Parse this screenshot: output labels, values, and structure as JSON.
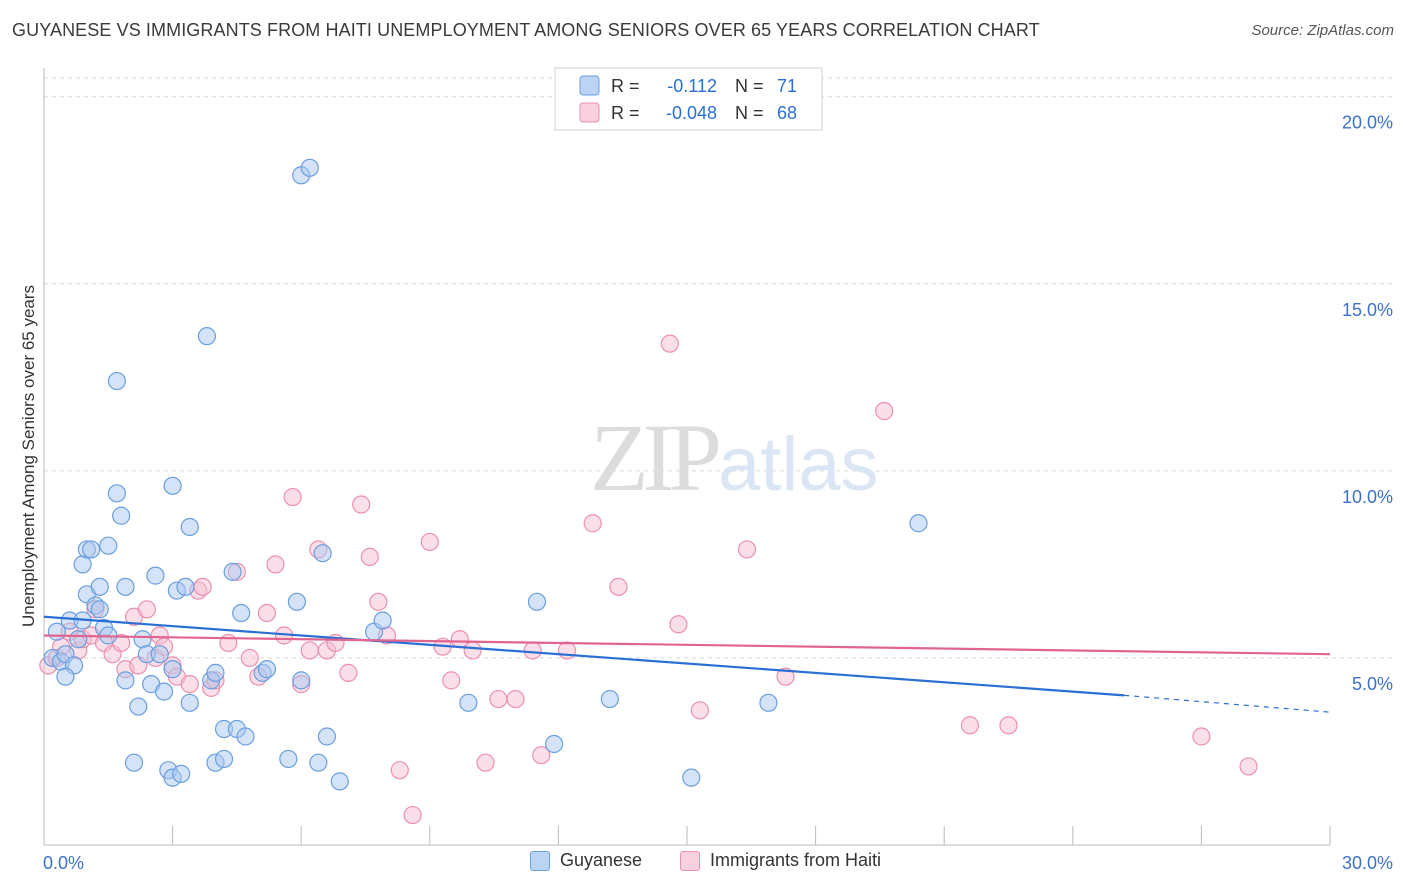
{
  "title": "GUYANESE VS IMMIGRANTS FROM HAITI UNEMPLOYMENT AMONG SENIORS OVER 65 YEARS CORRELATION CHART",
  "source": "Source: ZipAtlas.com",
  "watermark": {
    "zip": "ZIP",
    "atlas": "atlas"
  },
  "colors": {
    "blue_fill": "#a9c8f0",
    "blue_stroke": "#6a9fe0",
    "blue_line": "#2a6fd4",
    "pink_fill": "#f6bfd1",
    "pink_stroke": "#ec90ae",
    "pink_line": "#e0648e",
    "axis_text": "#3b72c9",
    "grid": "#d8d8d8"
  },
  "legend": {
    "rows": [
      {
        "r_label": "R =",
        "r_value": "-0.112",
        "n_label": "N =",
        "n_value": "71"
      },
      {
        "r_label": "R =",
        "r_value": "-0.048",
        "n_label": "N =",
        "n_value": "68"
      }
    ]
  },
  "bottom_legend": [
    "Guyanese",
    "Immigrants from Haiti"
  ],
  "chart_data": {
    "type": "scatter",
    "title": "GUYANESE VS IMMIGRANTS FROM HAITI UNEMPLOYMENT AMONG SENIORS OVER 65 YEARS CORRELATION CHART",
    "xlabel": "",
    "ylabel": "Unemployment Among Seniors over 65 years",
    "xlim": [
      0,
      30
    ],
    "ylim": [
      0,
      20.5
    ],
    "x_tick_labels": [
      "0.0%",
      "30.0%"
    ],
    "y_ticks": [
      5,
      10,
      15,
      20
    ],
    "y_tick_labels": [
      "5.0%",
      "10.0%",
      "15.0%",
      "20.0%"
    ],
    "grid": true,
    "series": [
      {
        "name": "Guyanese",
        "r": -0.112,
        "n": 71,
        "trend": {
          "x0": 0,
          "y0": 6.1,
          "x1": 25.2,
          "y1": 4.0,
          "dash_to_x": 30,
          "dash_to_y": 3.55
        },
        "points": [
          [
            0.2,
            5.0
          ],
          [
            0.3,
            5.7
          ],
          [
            0.4,
            4.9
          ],
          [
            0.5,
            5.1
          ],
          [
            0.6,
            6.0
          ],
          [
            0.7,
            4.8
          ],
          [
            0.8,
            5.5
          ],
          [
            0.9,
            6.0
          ],
          [
            0.9,
            7.5
          ],
          [
            1.0,
            6.7
          ],
          [
            1.0,
            7.9
          ],
          [
            1.1,
            7.9
          ],
          [
            1.2,
            6.4
          ],
          [
            1.3,
            6.3
          ],
          [
            1.3,
            6.9
          ],
          [
            1.4,
            5.8
          ],
          [
            1.5,
            5.6
          ],
          [
            1.5,
            8.0
          ],
          [
            1.7,
            9.4
          ],
          [
            1.8,
            8.8
          ],
          [
            1.7,
            12.4
          ],
          [
            1.9,
            6.9
          ],
          [
            1.9,
            4.4
          ],
          [
            2.1,
            2.2
          ],
          [
            2.2,
            3.7
          ],
          [
            2.3,
            5.5
          ],
          [
            2.4,
            5.1
          ],
          [
            2.5,
            4.3
          ],
          [
            2.6,
            7.2
          ],
          [
            2.7,
            5.1
          ],
          [
            2.8,
            4.1
          ],
          [
            2.9,
            2.0
          ],
          [
            3.0,
            4.7
          ],
          [
            3.0,
            1.8
          ],
          [
            3.0,
            9.6
          ],
          [
            3.1,
            6.8
          ],
          [
            3.2,
            1.9
          ],
          [
            3.3,
            6.9
          ],
          [
            3.4,
            3.8
          ],
          [
            3.4,
            8.5
          ],
          [
            3.8,
            13.6
          ],
          [
            3.9,
            4.4
          ],
          [
            4.0,
            4.6
          ],
          [
            4.0,
            2.2
          ],
          [
            4.2,
            3.1
          ],
          [
            4.2,
            2.3
          ],
          [
            4.4,
            7.3
          ],
          [
            4.5,
            3.1
          ],
          [
            4.6,
            6.2
          ],
          [
            4.7,
            2.9
          ],
          [
            5.1,
            4.6
          ],
          [
            5.2,
            4.7
          ],
          [
            5.7,
            2.3
          ],
          [
            5.9,
            6.5
          ],
          [
            6.0,
            17.9
          ],
          [
            6.0,
            4.4
          ],
          [
            6.2,
            18.1
          ],
          [
            6.4,
            2.2
          ],
          [
            6.5,
            7.8
          ],
          [
            6.6,
            2.9
          ],
          [
            6.9,
            1.7
          ],
          [
            7.7,
            5.7
          ],
          [
            7.9,
            6.0
          ],
          [
            9.9,
            3.8
          ],
          [
            11.5,
            6.5
          ],
          [
            11.9,
            2.7
          ],
          [
            13.2,
            3.9
          ],
          [
            15.1,
            1.8
          ],
          [
            16.9,
            3.8
          ],
          [
            20.4,
            8.6
          ],
          [
            0.5,
            4.5
          ]
        ]
      },
      {
        "name": "Immigrants from Haiti",
        "r": -0.048,
        "n": 68,
        "trend": {
          "x0": 0,
          "y0": 5.6,
          "x1": 30,
          "y1": 5.1
        },
        "points": [
          [
            0.1,
            4.8
          ],
          [
            0.3,
            5.0
          ],
          [
            0.4,
            5.3
          ],
          [
            0.6,
            5.7
          ],
          [
            0.8,
            5.2
          ],
          [
            0.9,
            5.5
          ],
          [
            1.1,
            5.6
          ],
          [
            1.2,
            6.3
          ],
          [
            1.4,
            5.4
          ],
          [
            1.6,
            5.1
          ],
          [
            1.8,
            5.4
          ],
          [
            1.9,
            4.7
          ],
          [
            2.1,
            6.1
          ],
          [
            2.2,
            4.8
          ],
          [
            2.4,
            6.3
          ],
          [
            2.6,
            5.0
          ],
          [
            2.7,
            5.6
          ],
          [
            2.8,
            5.3
          ],
          [
            3.0,
            4.8
          ],
          [
            3.1,
            4.5
          ],
          [
            3.4,
            4.3
          ],
          [
            3.6,
            6.8
          ],
          [
            3.7,
            6.9
          ],
          [
            3.9,
            4.2
          ],
          [
            4.0,
            4.4
          ],
          [
            4.3,
            5.4
          ],
          [
            4.5,
            7.3
          ],
          [
            4.8,
            5.0
          ],
          [
            5.0,
            4.5
          ],
          [
            5.2,
            6.2
          ],
          [
            5.4,
            7.5
          ],
          [
            5.6,
            5.6
          ],
          [
            5.8,
            9.3
          ],
          [
            6.0,
            4.3
          ],
          [
            6.2,
            5.2
          ],
          [
            6.4,
            7.9
          ],
          [
            6.6,
            5.2
          ],
          [
            6.8,
            5.4
          ],
          [
            7.1,
            4.6
          ],
          [
            7.4,
            9.1
          ],
          [
            7.6,
            7.7
          ],
          [
            7.8,
            6.5
          ],
          [
            8.0,
            5.6
          ],
          [
            8.3,
            2.0
          ],
          [
            8.6,
            0.8
          ],
          [
            9.0,
            8.1
          ],
          [
            9.3,
            5.3
          ],
          [
            9.5,
            4.4
          ],
          [
            9.7,
            5.5
          ],
          [
            10.0,
            5.2
          ],
          [
            10.3,
            2.2
          ],
          [
            10.6,
            3.9
          ],
          [
            11.0,
            3.9
          ],
          [
            11.4,
            5.2
          ],
          [
            11.6,
            2.4
          ],
          [
            12.2,
            5.2
          ],
          [
            12.8,
            8.6
          ],
          [
            13.4,
            6.9
          ],
          [
            14.6,
            13.4
          ],
          [
            14.8,
            5.9
          ],
          [
            15.3,
            3.6
          ],
          [
            16.4,
            7.9
          ],
          [
            17.3,
            4.5
          ],
          [
            19.6,
            11.6
          ],
          [
            21.6,
            3.2
          ],
          [
            22.5,
            3.2
          ],
          [
            27.0,
            2.9
          ],
          [
            28.1,
            2.1
          ]
        ]
      }
    ]
  }
}
